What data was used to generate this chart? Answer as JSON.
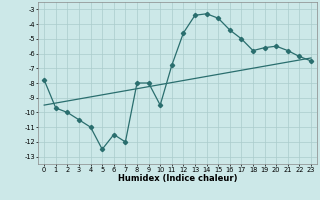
{
  "xlabel": "Humidex (Indice chaleur)",
  "ylabel": "",
  "background_color": "#cce8e8",
  "grid_color": "#aacccc",
  "line_color": "#2a6e6e",
  "xlim": [
    -0.5,
    23.5
  ],
  "ylim": [
    -13.5,
    -2.5
  ],
  "yticks": [
    -3,
    -4,
    -5,
    -6,
    -7,
    -8,
    -9,
    -10,
    -11,
    -12,
    -13
  ],
  "xticks": [
    0,
    1,
    2,
    3,
    4,
    5,
    6,
    7,
    8,
    9,
    10,
    11,
    12,
    13,
    14,
    15,
    16,
    17,
    18,
    19,
    20,
    21,
    22,
    23
  ],
  "line1_x": [
    0,
    1,
    2,
    3,
    4,
    5,
    6,
    7,
    8,
    9,
    10,
    11,
    12,
    13,
    14,
    15,
    16,
    17,
    18,
    19,
    20,
    21,
    22,
    23
  ],
  "line1_y": [
    -7.8,
    -9.7,
    -10.0,
    -10.5,
    -11.0,
    -12.5,
    -11.5,
    -12.0,
    -8.0,
    -8.0,
    -9.5,
    -6.8,
    -4.6,
    -3.4,
    -3.3,
    -3.6,
    -4.4,
    -5.0,
    -5.8,
    -5.6,
    -5.5,
    -5.8,
    -6.2,
    -6.5
  ],
  "line2_x": [
    0,
    23
  ],
  "line2_y": [
    -9.5,
    -6.3
  ],
  "marker": "D",
  "markersize": 2.2,
  "linewidth": 0.9,
  "label_fontsize": 5.5,
  "tick_fontsize": 4.8,
  "xlabel_fontsize": 6.0
}
